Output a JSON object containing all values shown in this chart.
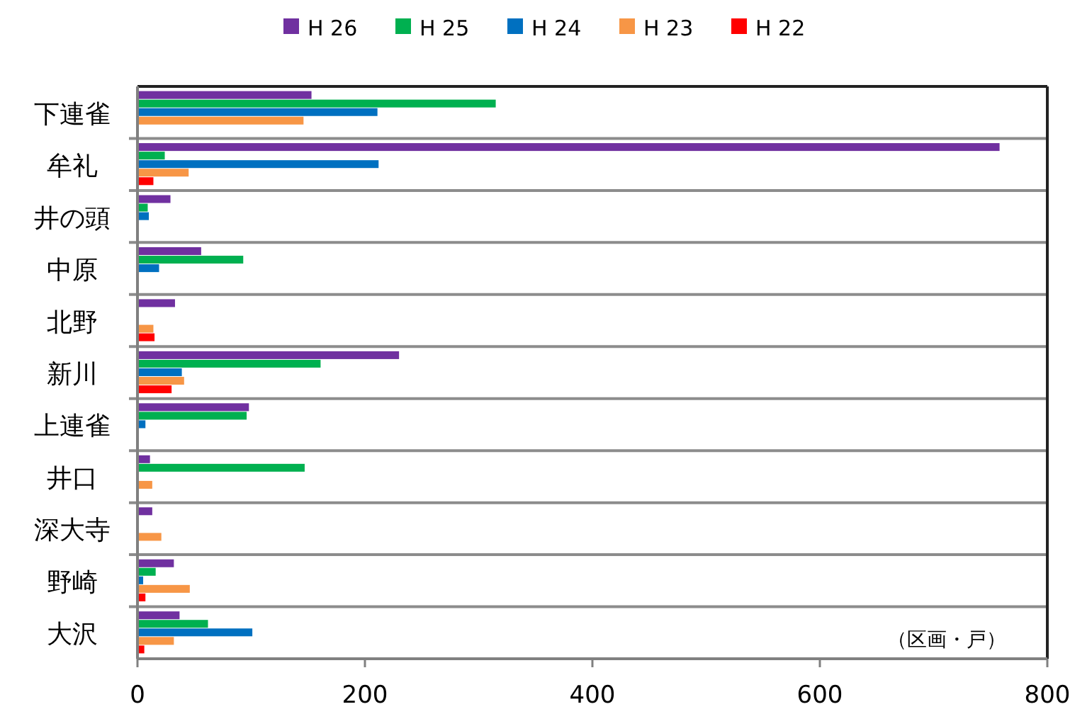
{
  "chart_data": {
    "type": "bar",
    "orientation": "horizontal",
    "categories": [
      "下連雀",
      "牟礼",
      "井の頭",
      "中原",
      "北野",
      "新川",
      "上連雀",
      "井口",
      "深大寺",
      "野崎",
      "大沢"
    ],
    "series": [
      {
        "name": "H 26",
        "color": "#7030a0",
        "values": [
          153,
          758,
          29,
          56,
          33,
          230,
          98,
          11,
          13,
          32,
          37
        ]
      },
      {
        "name": "H 25",
        "color": "#00b050",
        "values": [
          315,
          24,
          9,
          93,
          null,
          161,
          96,
          147,
          null,
          16,
          62
        ]
      },
      {
        "name": "H 24",
        "color": "#0070c0",
        "values": [
          211,
          212,
          10,
          19,
          null,
          39,
          7,
          null,
          null,
          5,
          101
        ]
      },
      {
        "name": "H 23",
        "color": "#f79646",
        "values": [
          146,
          45,
          null,
          null,
          14,
          41,
          null,
          13,
          21,
          46,
          32
        ]
      },
      {
        "name": "H 22",
        "color": "#ff0000",
        "values": [
          null,
          14,
          null,
          null,
          15,
          30,
          null,
          null,
          null,
          7,
          6
        ]
      }
    ],
    "xlim": [
      0,
      800
    ],
    "xticks": [
      0,
      200,
      400,
      600,
      800
    ],
    "grid": "y",
    "legend": "top",
    "annotations": [
      "（区画・戸）"
    ]
  }
}
